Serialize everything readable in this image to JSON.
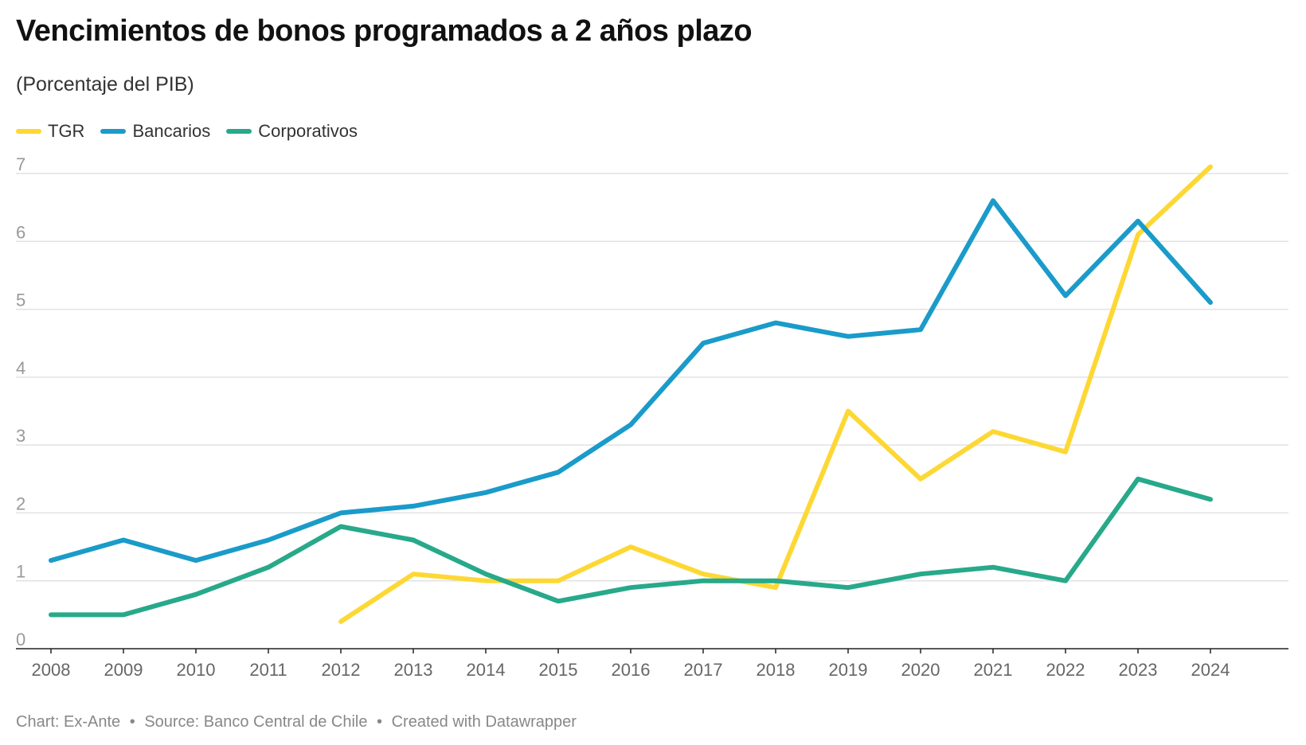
{
  "chart_data": {
    "type": "line",
    "title": "Vencimientos de bonos programados a 2 años plazo",
    "subtitle": "(Porcentaje del PIB)",
    "x": [
      2008,
      2009,
      2010,
      2011,
      2012,
      2013,
      2014,
      2015,
      2016,
      2017,
      2018,
      2019,
      2020,
      2021,
      2022,
      2023,
      2024
    ],
    "ylim": [
      0,
      7
    ],
    "yticks": [
      0,
      1,
      2,
      3,
      4,
      5,
      6,
      7
    ],
    "grid": true,
    "legend_position": "top-left",
    "series": [
      {
        "name": "TGR",
        "color": "#fdd835",
        "values": [
          null,
          null,
          null,
          null,
          0.4,
          1.1,
          1.0,
          1.0,
          1.5,
          1.1,
          0.9,
          3.5,
          2.5,
          3.2,
          2.9,
          6.1,
          7.1
        ]
      },
      {
        "name": "Bancarios",
        "color": "#1a9bc9",
        "values": [
          1.3,
          1.6,
          1.3,
          1.6,
          2.0,
          2.1,
          2.3,
          2.6,
          3.3,
          4.5,
          4.8,
          4.6,
          4.7,
          6.6,
          5.2,
          6.3,
          5.1
        ]
      },
      {
        "name": "Corporativos",
        "color": "#27a98a",
        "values": [
          0.5,
          0.5,
          0.8,
          1.2,
          1.8,
          1.6,
          1.1,
          0.7,
          0.9,
          1.0,
          1.0,
          0.9,
          1.1,
          1.2,
          1.0,
          2.5,
          2.2
        ]
      }
    ]
  },
  "footer": {
    "chart": "Chart: Ex-Ante",
    "source": "Source: Banco Central de Chile",
    "created": "Created with Datawrapper",
    "separator": "•"
  }
}
